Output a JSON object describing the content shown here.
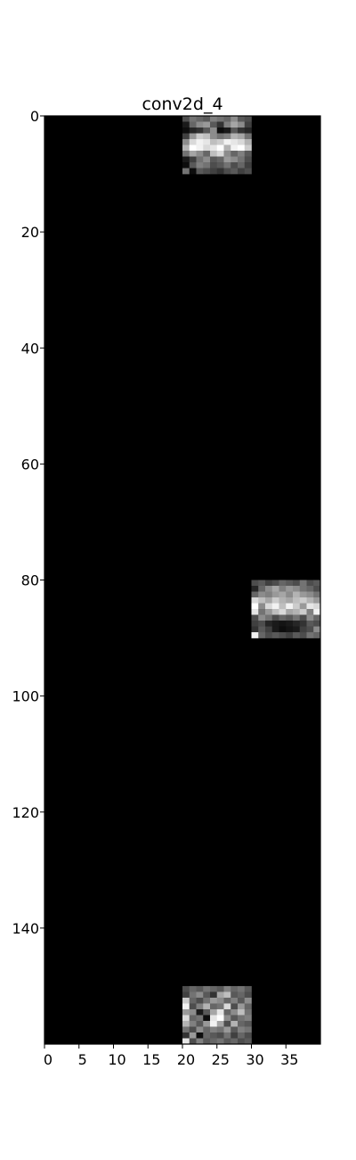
{
  "chart_data": {
    "type": "heatmap",
    "title": "conv2d_4",
    "xlabel": "",
    "ylabel": "",
    "colormap": "gray",
    "background_color": "#000000",
    "xlim": [
      0,
      40
    ],
    "ylim": [
      160,
      0
    ],
    "x_ticks": [
      0,
      5,
      10,
      15,
      20,
      25,
      30,
      35
    ],
    "y_ticks": [
      0,
      20,
      40,
      60,
      80,
      100,
      120,
      140
    ],
    "grid": false,
    "blocks": [
      {
        "row": 0,
        "col": 20,
        "values": [
          [
            0.3,
            0.45,
            0.4,
            0.35,
            0.5,
            0.45,
            0.4,
            0.55,
            0.35,
            0.3
          ],
          [
            0.1,
            0.4,
            0.55,
            0.6,
            0.35,
            0.2,
            0.5,
            0.65,
            0.55,
            0.25
          ],
          [
            0.05,
            0.15,
            0.2,
            0.35,
            0.55,
            0.05,
            0.1,
            0.35,
            0.2,
            0.15
          ],
          [
            0.25,
            0.6,
            0.8,
            0.75,
            0.55,
            0.45,
            0.5,
            0.7,
            0.65,
            0.45
          ],
          [
            0.55,
            0.85,
            0.95,
            0.9,
            0.75,
            0.8,
            0.95,
            0.9,
            0.85,
            0.7
          ],
          [
            0.7,
            1.0,
            0.95,
            0.85,
            0.9,
            1.0,
            0.7,
            0.95,
            1.0,
            0.8
          ],
          [
            0.45,
            0.65,
            0.55,
            0.4,
            0.75,
            0.85,
            0.55,
            0.4,
            0.5,
            0.35
          ],
          [
            0.1,
            0.25,
            0.45,
            0.55,
            0.35,
            0.4,
            0.6,
            0.55,
            0.45,
            0.3
          ],
          [
            0.05,
            0.35,
            0.5,
            0.45,
            0.3,
            0.35,
            0.45,
            0.3,
            0.4,
            0.25
          ],
          [
            0.45,
            0.05,
            0.35,
            0.3,
            0.25,
            0.2,
            0.3,
            0.35,
            0.25,
            0.3
          ]
        ]
      },
      {
        "row": 80,
        "col": 30,
        "values": [
          [
            0.3,
            0.35,
            0.25,
            0.3,
            0.4,
            0.35,
            0.3,
            0.45,
            0.3,
            0.35
          ],
          [
            0.15,
            0.4,
            0.55,
            0.65,
            0.5,
            0.6,
            0.55,
            0.45,
            0.4,
            0.3
          ],
          [
            0.4,
            0.55,
            0.5,
            0.6,
            0.65,
            0.55,
            0.7,
            0.6,
            0.55,
            0.45
          ],
          [
            0.85,
            0.75,
            0.65,
            0.8,
            0.7,
            0.65,
            0.75,
            0.8,
            0.7,
            0.6
          ],
          [
            1.0,
            0.55,
            0.85,
            0.95,
            0.75,
            0.95,
            0.8,
            0.6,
            0.9,
            0.85
          ],
          [
            0.9,
            0.45,
            0.6,
            0.75,
            0.85,
            0.65,
            0.7,
            0.8,
            0.5,
            0.95
          ],
          [
            0.3,
            0.55,
            0.45,
            0.3,
            0.4,
            0.35,
            0.45,
            0.3,
            0.55,
            0.4
          ],
          [
            0.25,
            0.3,
            0.15,
            0.1,
            0.08,
            0.1,
            0.15,
            0.2,
            0.35,
            0.3
          ],
          [
            0.2,
            0.35,
            0.25,
            0.1,
            0.05,
            0.08,
            0.1,
            0.25,
            0.3,
            0.55
          ],
          [
            0.95,
            0.4,
            0.3,
            0.35,
            0.3,
            0.25,
            0.35,
            0.3,
            0.45,
            0.4
          ]
        ]
      },
      {
        "row": 150,
        "col": 20,
        "values": [
          [
            0.3,
            0.4,
            0.35,
            0.45,
            0.4,
            0.35,
            0.5,
            0.4,
            0.45,
            0.35
          ],
          [
            0.25,
            0.45,
            0.55,
            0.35,
            0.2,
            0.65,
            0.75,
            0.35,
            0.4,
            0.3
          ],
          [
            0.8,
            0.4,
            0.3,
            0.45,
            0.6,
            0.55,
            0.4,
            0.5,
            0.35,
            0.55
          ],
          [
            0.95,
            0.3,
            0.5,
            0.7,
            0.4,
            0.45,
            0.85,
            0.3,
            0.6,
            0.4
          ],
          [
            0.6,
            0.55,
            0.1,
            0.35,
            0.65,
            0.9,
            0.4,
            0.55,
            0.75,
            0.45
          ],
          [
            0.85,
            0.4,
            0.45,
            0.05,
            0.9,
            1.0,
            0.55,
            0.35,
            0.45,
            0.5
          ],
          [
            0.7,
            0.5,
            0.35,
            0.6,
            0.95,
            0.65,
            0.3,
            0.7,
            0.4,
            0.35
          ],
          [
            0.45,
            0.3,
            0.55,
            0.4,
            0.5,
            0.45,
            0.6,
            0.35,
            0.5,
            0.45
          ],
          [
            0.2,
            0.6,
            0.05,
            0.4,
            0.35,
            0.3,
            0.45,
            0.25,
            0.4,
            0.3
          ],
          [
            0.9,
            0.3,
            0.5,
            0.35,
            0.4,
            0.45,
            0.35,
            0.4,
            0.3,
            0.35
          ]
        ]
      }
    ]
  }
}
